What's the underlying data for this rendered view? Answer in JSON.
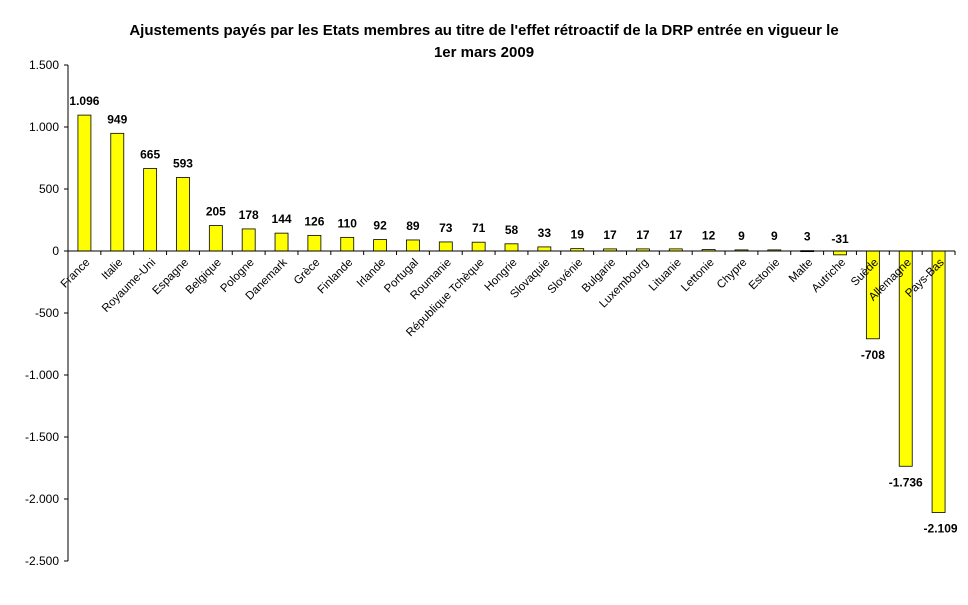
{
  "chart_data": {
    "type": "bar",
    "title": "Ajustements payés par les Etats membres au titre de l'effet rétroactif de la DRP entrée en vigueur le 1er mars 2009",
    "title_lines": [
      "Ajustements payés par les Etats membres au titre de l'effet rétroactif de la DRP entrée en vigueur le",
      "1er mars 2009"
    ],
    "xlabel": "",
    "ylabel": "",
    "ylim": [
      -2500,
      1500
    ],
    "yticks": [
      1500,
      1000,
      500,
      0,
      -500,
      -1000,
      -1500,
      -2000,
      -2500
    ],
    "ytick_labels": [
      "1.500",
      "1.000",
      "500",
      "0",
      "-500",
      "-1.000",
      "-1.500",
      "-2.000",
      "-2.500"
    ],
    "grid": false,
    "legend": "none",
    "bar_color": "#FFFF00",
    "categories": [
      "France",
      "Italie",
      "Royaume-Uni",
      "Espagne",
      "Belgique",
      "Pologne",
      "Danemark",
      "Grèce",
      "Finlande",
      "Irlande",
      "Portugal",
      "Roumanie",
      "République Tchèque",
      "Hongrie",
      "Slovaquie",
      "Slovénie",
      "Bulgarie",
      "Luxembourg",
      "Lituanie",
      "Lettonie",
      "Chypre",
      "Estonie",
      "Malte",
      "Autriche",
      "Suède",
      "Allemagne",
      "Pays-Bas"
    ],
    "values": [
      1096,
      949,
      665,
      593,
      205,
      178,
      144,
      126,
      110,
      92,
      89,
      73,
      71,
      58,
      33,
      19,
      17,
      17,
      17,
      12,
      9,
      9,
      3,
      -31,
      -708,
      -1736,
      -2109
    ],
    "data_labels": [
      "1.096",
      "949",
      "665",
      "593",
      "205",
      "178",
      "144",
      "126",
      "110",
      "92",
      "89",
      "73",
      "71",
      "58",
      "33",
      "19",
      "17",
      "17",
      "17",
      "12",
      "9",
      "9",
      "3",
      "-31",
      "-708",
      "-1.736",
      "-2.109"
    ]
  }
}
